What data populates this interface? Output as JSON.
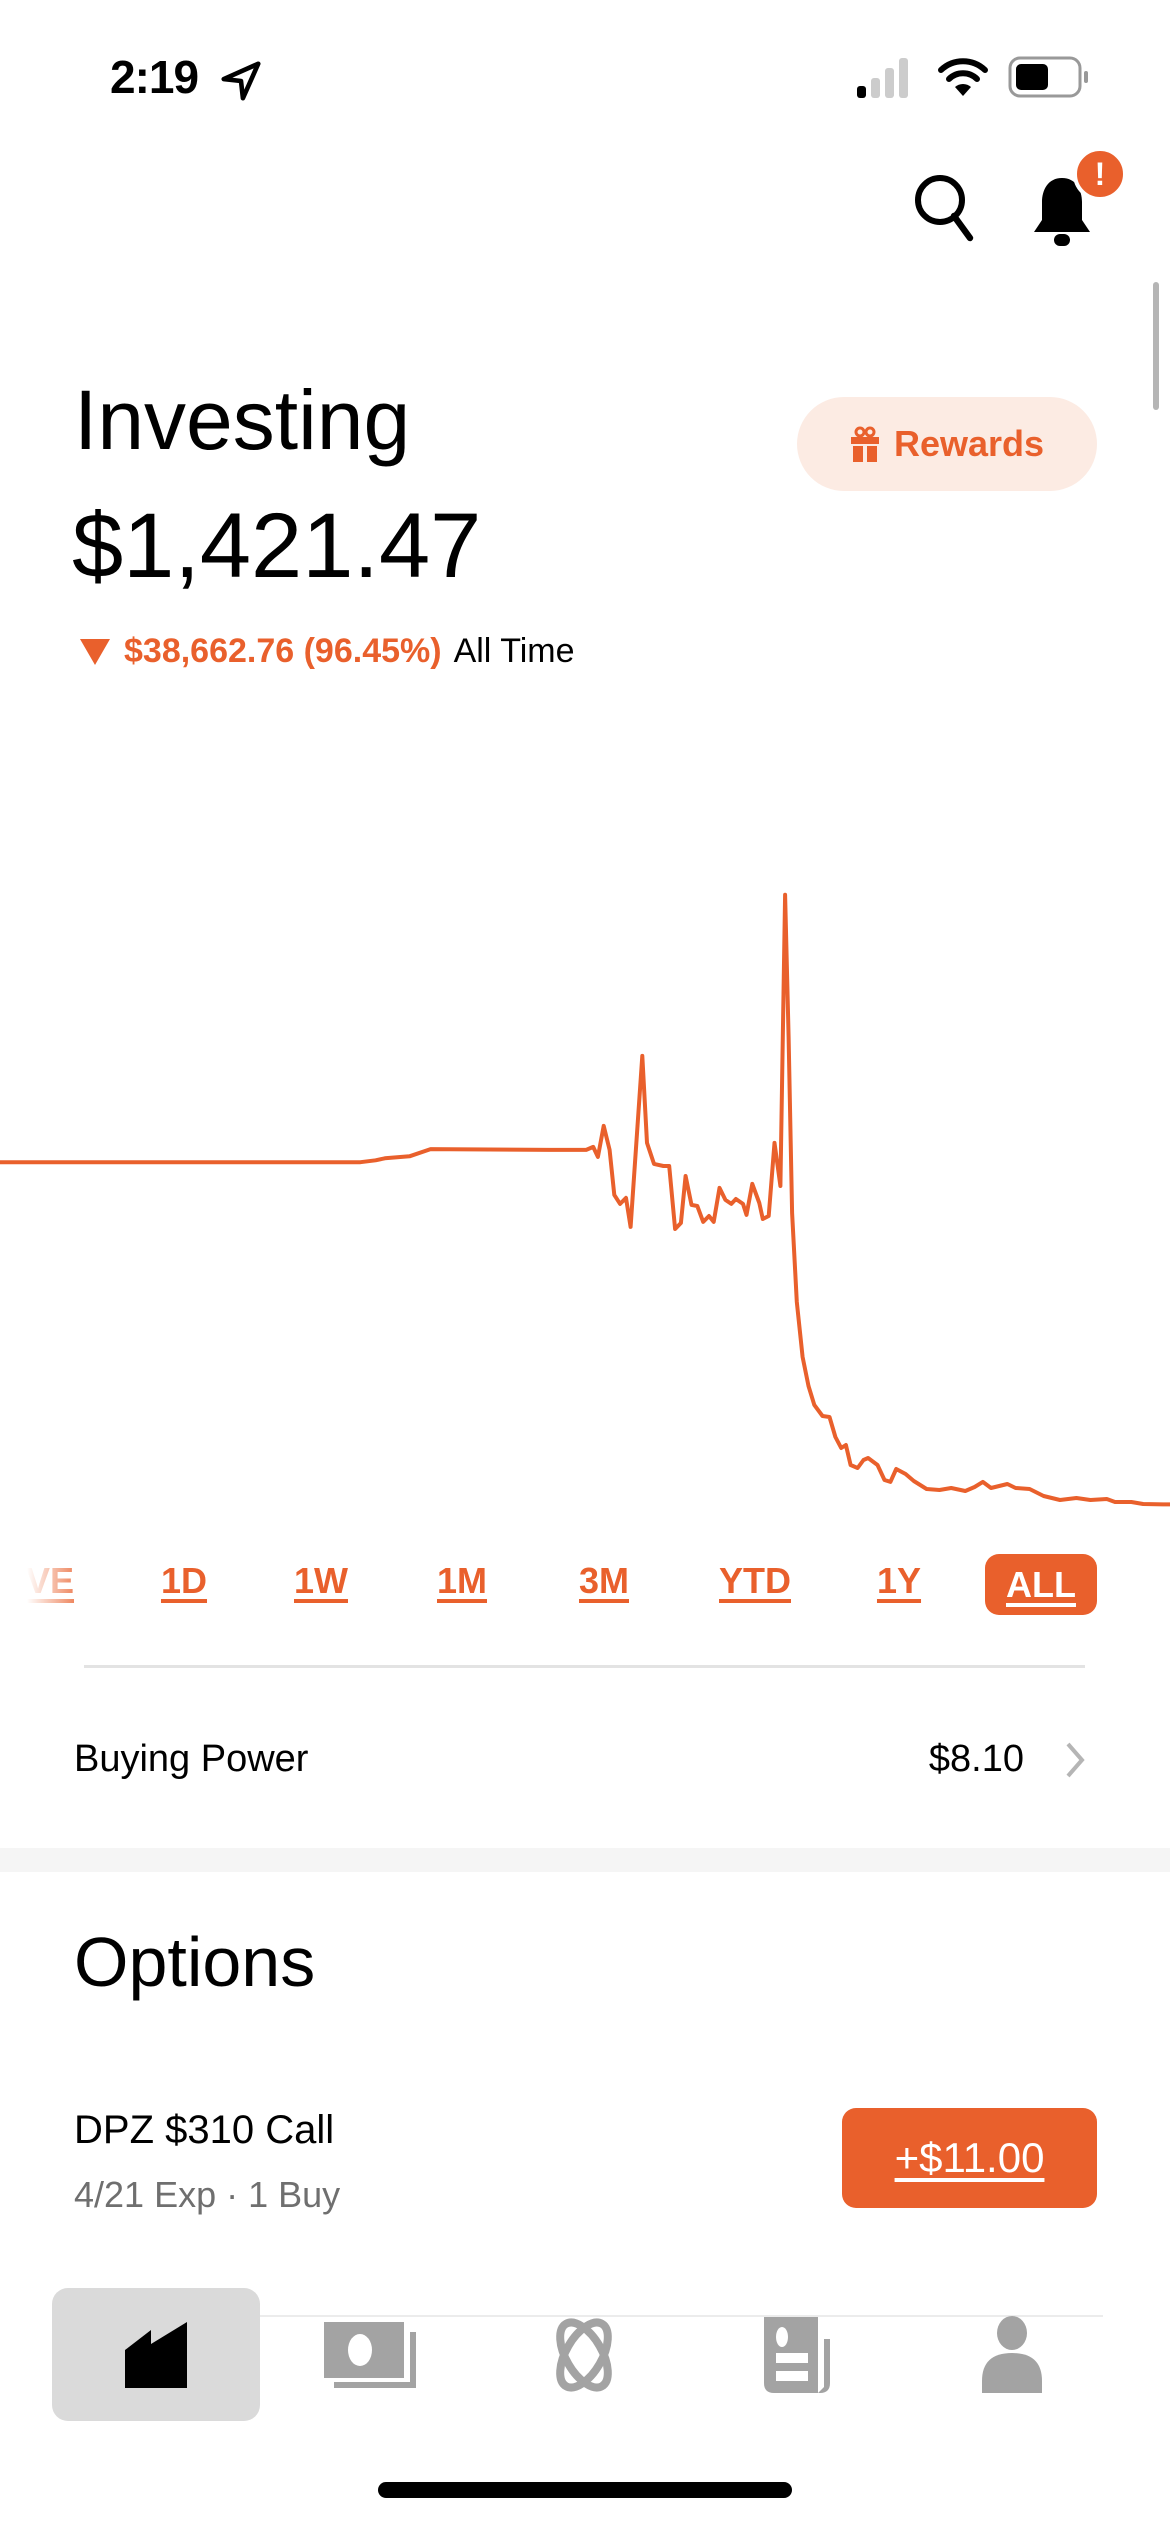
{
  "status_bar": {
    "time": "2:19",
    "icons": [
      "location-arrow-icon",
      "cellular-signal-icon",
      "wifi-icon",
      "battery-icon"
    ]
  },
  "header": {
    "icons": [
      "search-icon",
      "bell-icon"
    ],
    "notification_badge": "!"
  },
  "portfolio": {
    "title": "Investing",
    "value": "$1,421.47",
    "change_amount": "$38,662.76 (96.45%)",
    "change_period": "All Time",
    "direction": "down"
  },
  "rewards_button": {
    "label": "Rewards",
    "icon": "gift-icon"
  },
  "colors": {
    "accent": "#e9602c",
    "accent_light": "#fcebe3"
  },
  "chart_data": {
    "type": "line",
    "title": "",
    "xlabel": "",
    "ylabel": "",
    "grid": false,
    "ylim": [
      0,
      74000
    ],
    "x": [
      0,
      30.8,
      32.1,
      32.9,
      35,
      36.8,
      47,
      50.1,
      50.7,
      51.1,
      51.6,
      52.1,
      52.5,
      53,
      53.5,
      53.9,
      54.9,
      55.3,
      55.9,
      56.7,
      57.2,
      57.7,
      58.2,
      58.6,
      59.1,
      59.6,
      60.1,
      60.6,
      61,
      61.5,
      62,
      62.5,
      62.9,
      63.5,
      63.8,
      64.3,
      64.9,
      65.2,
      65.7,
      66.2,
      66.7,
      67.1,
      67.4,
      67.7,
      68.1,
      68.6,
      69.1,
      69.6,
      70.3,
      70.9,
      71.4,
      71.9,
      72.3,
      72.7,
      73.3,
      73.8,
      74.2,
      75,
      75.6,
      76.1,
      76.6,
      77.4,
      78.1,
      79.2,
      80.3,
      81.3,
      82.5,
      83.3,
      84,
      84.7,
      86.1,
      86.8,
      88,
      89.2,
      90.6,
      92,
      93.2,
      94.6,
      95.3,
      96.7,
      97.7,
      99.4,
      100
    ],
    "values": [
      40080,
      40080,
      40300,
      40530,
      40750,
      41560,
      41470,
      41470,
      41810,
      40680,
      44180,
      41470,
      36390,
      35370,
      36050,
      32770,
      52090,
      42260,
      39890,
      39660,
      39660,
      32540,
      33220,
      38530,
      35260,
      35140,
      33340,
      34010,
      33340,
      37180,
      35820,
      35370,
      35930,
      35370,
      34130,
      37630,
      35480,
      33670,
      34010,
      42260,
      37400,
      70290,
      54240,
      34350,
      24300,
      18080,
      14800,
      12660,
      11410,
      11300,
      9040,
      7800,
      8140,
      5880,
      5540,
      6440,
      6670,
      5880,
      4180,
      3960,
      5420,
      4860,
      4070,
      3160,
      3050,
      3280,
      2940,
      3390,
      3960,
      3280,
      3730,
      3280,
      3160,
      2370,
      1920,
      2150,
      1920,
      2030,
      1700,
      1700,
      1470,
      1421.47,
      1421.47
    ],
    "color": "#e9602c"
  },
  "time_tabs": [
    {
      "label": "LIVE"
    },
    {
      "label": "1D"
    },
    {
      "label": "1W"
    },
    {
      "label": "1M"
    },
    {
      "label": "3M"
    },
    {
      "label": "YTD"
    },
    {
      "label": "1Y"
    },
    {
      "label": "ALL",
      "selected": true
    }
  ],
  "buying_power": {
    "label": "Buying Power",
    "value": "$8.10"
  },
  "options": {
    "heading": "Options",
    "items": [
      {
        "name": "DPZ $310 Call",
        "detail": "4/21 Exp · 1 Buy",
        "value": "+$11.00"
      }
    ]
  },
  "bottom_nav": [
    {
      "icon": "investing-chart-icon",
      "active": true
    },
    {
      "icon": "cash-icon"
    },
    {
      "icon": "crypto-icon"
    },
    {
      "icon": "news-icon"
    },
    {
      "icon": "account-person-icon"
    }
  ]
}
